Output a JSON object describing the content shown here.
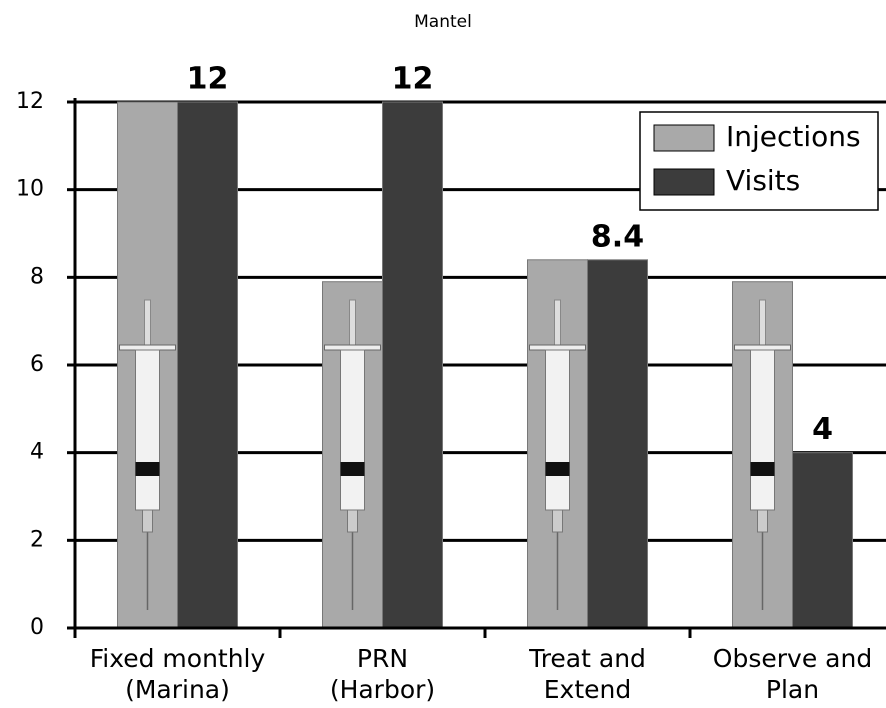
{
  "chart_data": {
    "type": "bar",
    "title": "Mantel",
    "categories": [
      "Fixed monthly\n(Marina)",
      "PRN\n(Harbor)",
      "Treat and\nExtend",
      "Observe and\nPlan"
    ],
    "series": [
      {
        "name": "Injections",
        "color": "#a9a9a9",
        "values": [
          12,
          7.9,
          8.4,
          7.9
        ]
      },
      {
        "name": "Visits",
        "color": "#3c3c3c",
        "values": [
          12,
          12,
          8.4,
          4
        ]
      }
    ],
    "data_labels_series": "Visits",
    "ylim": [
      0,
      12
    ],
    "yticks": [
      0,
      2,
      4,
      6,
      8,
      10,
      12
    ],
    "grid": true,
    "legend": "upper right"
  }
}
